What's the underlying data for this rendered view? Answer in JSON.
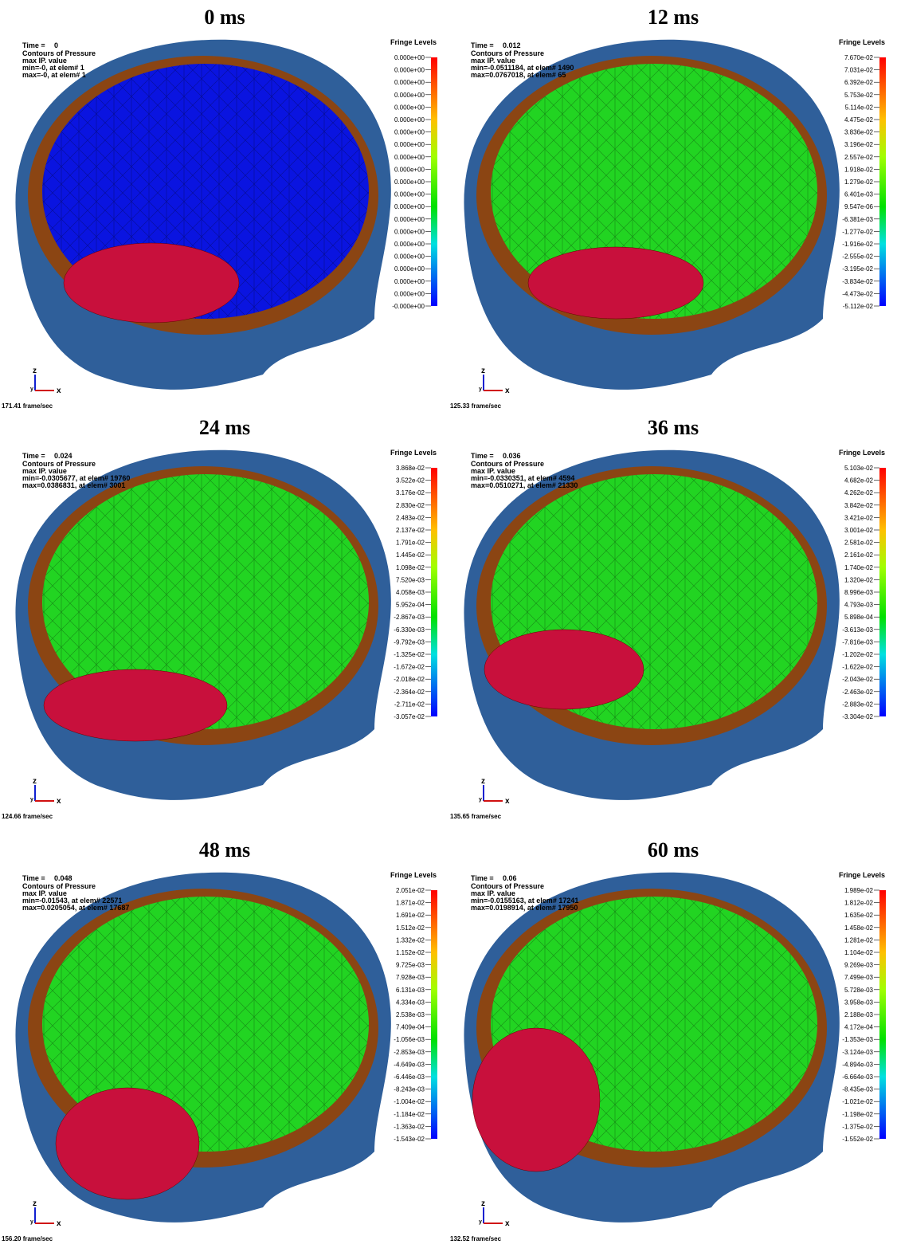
{
  "panels": [
    {
      "title": "0 ms",
      "time_label": "Time =",
      "time": "0",
      "info": [
        "Contours of Pressure",
        "max IP. value",
        " min=-0, at elem# 1",
        " max=-0, at elem# 1"
      ],
      "fringe_title": "Fringe Levels",
      "fringe": [
        "0.000e+00",
        "0.000e+00",
        "0.000e+00",
        "0.000e+00",
        "0.000e+00",
        "0.000e+00",
        "0.000e+00",
        "0.000e+00",
        "0.000e+00",
        "0.000e+00",
        "0.000e+00",
        "0.000e+00",
        "0.000e+00",
        "0.000e+00",
        "0.000e+00",
        "0.000e+00",
        "0.000e+00",
        "0.000e+00",
        "0.000e+00",
        "0.000e+00",
        "-0.000e+00"
      ],
      "axes": [
        "z",
        "y",
        "x"
      ],
      "fps": "171.41 frame/sec"
    },
    {
      "title": "12 ms",
      "time_label": "Time =",
      "time": "0.012",
      "info": [
        "Contours of Pressure",
        "max IP. value",
        " min=-0.0511184, at elem# 1490",
        " max=0.0767018, at elem# 65"
      ],
      "fringe_title": "Fringe Levels",
      "fringe": [
        "7.670e-02",
        "7.031e-02",
        "6.392e-02",
        "5.753e-02",
        "5.114e-02",
        "4.475e-02",
        "3.836e-02",
        "3.196e-02",
        "2.557e-02",
        "1.918e-02",
        "1.279e-02",
        "6.401e-03",
        "9.547e-06",
        "-6.381e-03",
        "-1.277e-02",
        "-1.916e-02",
        "-2.555e-02",
        "-3.195e-02",
        "-3.834e-02",
        "-4.473e-02",
        "-5.112e-02"
      ],
      "axes": [
        "z",
        "y",
        "x"
      ],
      "fps": "125.33 frame/sec"
    },
    {
      "title": "24 ms",
      "time_label": "Time =",
      "time": "0.024",
      "info": [
        "Contours of Pressure",
        "max IP. value",
        " min=-0.0305677, at elem# 19760",
        " max=0.0386831, at elem# 3001"
      ],
      "fringe_title": "Fringe Levels",
      "fringe": [
        "3.868e-02",
        "3.522e-02",
        "3.176e-02",
        "2.830e-02",
        "2.483e-02",
        "2.137e-02",
        "1.791e-02",
        "1.445e-02",
        "1.098e-02",
        "7.520e-03",
        "4.058e-03",
        "5.952e-04",
        "-2.867e-03",
        "-6.330e-03",
        "-9.792e-03",
        "-1.325e-02",
        "-1.672e-02",
        "-2.018e-02",
        "-2.364e-02",
        "-2.711e-02",
        "-3.057e-02"
      ],
      "axes": [
        "z",
        "y",
        "x"
      ],
      "fps": "124.66 frame/sec"
    },
    {
      "title": "36 ms",
      "time_label": "Time =",
      "time": "0.036",
      "info": [
        "Contours of Pressure",
        "max IP. value",
        " min=-0.0330351, at elem# 4594",
        " max=0.0510271, at elem# 21330"
      ],
      "fringe_title": "Fringe Levels",
      "fringe": [
        "5.103e-02",
        "4.682e-02",
        "4.262e-02",
        "3.842e-02",
        "3.421e-02",
        "3.001e-02",
        "2.581e-02",
        "2.161e-02",
        "1.740e-02",
        "1.320e-02",
        "8.996e-03",
        "4.793e-03",
        "5.898e-04",
        "-3.613e-03",
        "-7.816e-03",
        "-1.202e-02",
        "-1.622e-02",
        "-2.043e-02",
        "-2.463e-02",
        "-2.883e-02",
        "-3.304e-02"
      ],
      "axes": [
        "z",
        "y",
        "x"
      ],
      "fps": "135.65 frame/sec"
    },
    {
      "title": "48 ms",
      "time_label": "Time =",
      "time": "0.048",
      "info": [
        "Contours of Pressure",
        "max IP. value",
        " min=-0.01543, at elem# 22571",
        " max=0.0205054, at elem# 17687"
      ],
      "fringe_title": "Fringe Levels",
      "fringe": [
        "2.051e-02",
        "1.871e-02",
        "1.691e-02",
        "1.512e-02",
        "1.332e-02",
        "1.152e-02",
        "9.725e-03",
        "7.928e-03",
        "6.131e-03",
        "4.334e-03",
        "2.538e-03",
        "7.409e-04",
        "-1.056e-03",
        "-2.853e-03",
        "-4.649e-03",
        "-6.446e-03",
        "-8.243e-03",
        "-1.004e-02",
        "-1.184e-02",
        "-1.363e-02",
        "-1.543e-02"
      ],
      "axes": [
        "z",
        "y",
        "x"
      ],
      "fps": "156.20 frame/sec"
    },
    {
      "title": "60 ms",
      "time_label": "Time =",
      "time": "0.06",
      "info": [
        "Contours of Pressure",
        "max IP. value",
        " min=-0.0155163, at elem# 17241",
        " max=0.0198914, at elem# 17950"
      ],
      "fringe_title": "Fringe Levels",
      "fringe": [
        "1.989e-02",
        "1.812e-02",
        "1.635e-02",
        "1.458e-02",
        "1.281e-02",
        "1.104e-02",
        "9.269e-03",
        "7.499e-03",
        "5.728e-03",
        "3.958e-03",
        "2.188e-03",
        "4.172e-04",
        "-1.353e-03",
        "-3.124e-03",
        "-4.894e-03",
        "-6.664e-03",
        "-8.435e-03",
        "-1.021e-02",
        "-1.198e-02",
        "-1.375e-02",
        "-1.552e-02"
      ],
      "axes": [
        "z",
        "y",
        "x"
      ],
      "fps": "132.52 frame/sec"
    }
  ]
}
